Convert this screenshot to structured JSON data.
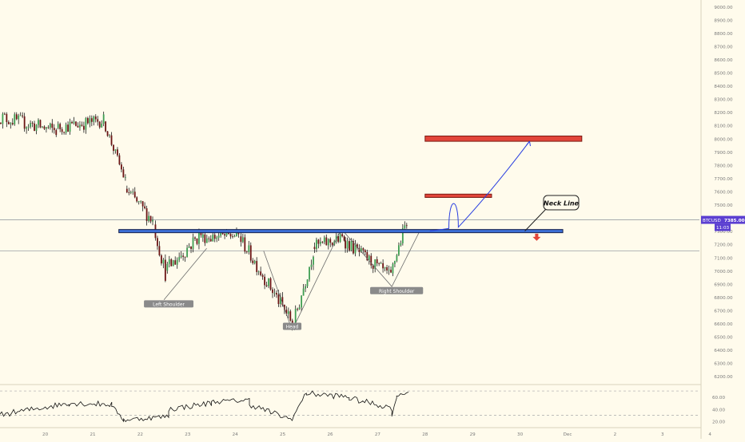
{
  "chart_data": {
    "type": "candlestick",
    "symbol": "BTCUSD",
    "last_price": "7385.00",
    "countdown": "11:03",
    "y_axis": {
      "ylim": [
        6150,
        9050
      ],
      "ticks": [
        "9000.00",
        "8900.00",
        "8800.00",
        "8700.00",
        "8600.00",
        "8500.00",
        "8400.00",
        "8300.00",
        "8200.00",
        "8100.00",
        "8000.00",
        "7900.00",
        "7800.00",
        "7700.00",
        "7600.00",
        "7500.00",
        "7400.00",
        "7300.00",
        "7200.00",
        "7100.00",
        "7000.00",
        "6900.00",
        "6800.00",
        "6700.00",
        "6600.00",
        "6500.00",
        "6400.00",
        "6300.00",
        "6200.00"
      ]
    },
    "x_axis": {
      "ticks": [
        {
          "label": "20",
          "day": 20
        },
        {
          "label": "21",
          "day": 21
        },
        {
          "label": "22",
          "day": 22
        },
        {
          "label": "23",
          "day": 23
        },
        {
          "label": "24",
          "day": 24
        },
        {
          "label": "25",
          "day": 25
        },
        {
          "label": "26",
          "day": 26
        },
        {
          "label": "27",
          "day": 27
        },
        {
          "label": "28",
          "day": 28
        },
        {
          "label": "29",
          "day": 29
        },
        {
          "label": "30",
          "day": 30
        },
        {
          "label": "Dec",
          "day": 31
        },
        {
          "label": "2",
          "day": 32
        },
        {
          "label": "3",
          "day": 33
        },
        {
          "label": "4",
          "day": 34
        }
      ]
    },
    "neck_line": {
      "label": "Neck Line",
      "price": 7300,
      "day_start": 21.55,
      "day_end": 30.9
    },
    "horizontal_lines": [
      {
        "price": 7385
      },
      {
        "price": 7150
      }
    ],
    "zones": [
      {
        "role": "upper-target",
        "day_start": 28.0,
        "day_end": 31.3,
        "price_low": 7980,
        "price_high": 8020
      },
      {
        "role": "lower-target",
        "day_start": 28.0,
        "day_end": 29.4,
        "price_low": 7555,
        "price_high": 7580
      }
    ],
    "pattern_labels": [
      {
        "text": "Left Shoulder",
        "day": 22.6,
        "price": 6740
      },
      {
        "text": "Head",
        "day": 25.2,
        "price": 6570
      },
      {
        "text": "Right Shoulder",
        "day": 27.4,
        "price": 6840
      }
    ],
    "pattern_lines": [
      [
        [
          22.5,
          6780
        ],
        [
          23.4,
          7170
        ]
      ],
      [
        [
          24.6,
          7150
        ],
        [
          25.2,
          6550
        ],
        [
          26.2,
          7290
        ]
      ],
      [
        [
          26.3,
          7290
        ],
        [
          27.3,
          6880
        ],
        [
          27.9,
          7310
        ]
      ]
    ],
    "projection_path": [
      [
        28.1,
        7300
      ],
      [
        28.5,
        7320
      ],
      [
        28.6,
        7570
      ],
      [
        28.7,
        7330
      ],
      [
        29.4,
        7560
      ],
      [
        30.2,
        7980
      ]
    ],
    "down_arrow": {
      "day": 30.35,
      "price": 7250
    },
    "candles_segments": [
      {
        "from_day": 19.0,
        "to_day": 20.25,
        "start": 8170,
        "end": 8060,
        "low": 8000,
        "high": 8200,
        "noise": 55
      },
      {
        "from_day": 20.25,
        "to_day": 21.25,
        "start": 8080,
        "end": 8140,
        "low": 8030,
        "high": 8210,
        "noise": 50
      },
      {
        "from_day": 21.25,
        "to_day": 21.7,
        "start": 8130,
        "end": 7680,
        "low": 7640,
        "high": 8150,
        "noise": 40
      },
      {
        "from_day": 21.7,
        "to_day": 22.3,
        "start": 7620,
        "end": 7380,
        "low": 7340,
        "high": 7700,
        "noise": 55
      },
      {
        "from_day": 22.3,
        "to_day": 22.55,
        "start": 7350,
        "end": 6980,
        "low": 6890,
        "high": 7400,
        "noise": 60
      },
      {
        "from_day": 22.55,
        "to_day": 23.3,
        "start": 7000,
        "end": 7280,
        "low": 6950,
        "high": 7360,
        "noise": 60
      },
      {
        "from_day": 23.3,
        "to_day": 24.1,
        "start": 7250,
        "end": 7270,
        "low": 7150,
        "high": 7330,
        "noise": 45
      },
      {
        "from_day": 24.1,
        "to_day": 25.25,
        "start": 7260,
        "end": 6580,
        "low": 6550,
        "high": 7310,
        "noise": 55
      },
      {
        "from_day": 25.25,
        "to_day": 25.65,
        "start": 6600,
        "end": 7150,
        "low": 6560,
        "high": 7200,
        "noise": 60
      },
      {
        "from_day": 25.65,
        "to_day": 26.3,
        "start": 7180,
        "end": 7250,
        "low": 7120,
        "high": 7340,
        "noise": 50
      },
      {
        "from_day": 26.3,
        "to_day": 27.3,
        "start": 7230,
        "end": 6950,
        "low": 6870,
        "high": 7290,
        "noise": 50
      },
      {
        "from_day": 27.3,
        "to_day": 27.65,
        "start": 6980,
        "end": 7385,
        "low": 6950,
        "high": 7395,
        "noise": 45
      }
    ],
    "rsi": {
      "ticks": [
        "60.00",
        "40.00",
        "20.00"
      ],
      "levels": [
        70,
        30
      ],
      "ylim": [
        12,
        78
      ],
      "segments": [
        {
          "from_day": 19.0,
          "to_day": 20.5,
          "start": 30,
          "end": 50,
          "noise": 5
        },
        {
          "from_day": 20.5,
          "to_day": 21.4,
          "start": 50,
          "end": 48,
          "noise": 5
        },
        {
          "from_day": 21.4,
          "to_day": 21.65,
          "start": 46,
          "end": 22,
          "noise": 3
        },
        {
          "from_day": 21.65,
          "to_day": 22.6,
          "start": 22,
          "end": 28,
          "noise": 4
        },
        {
          "from_day": 22.6,
          "to_day": 23.5,
          "start": 40,
          "end": 50,
          "noise": 5
        },
        {
          "from_day": 23.5,
          "to_day": 24.3,
          "start": 52,
          "end": 55,
          "noise": 4
        },
        {
          "from_day": 24.3,
          "to_day": 25.2,
          "start": 48,
          "end": 22,
          "noise": 5
        },
        {
          "from_day": 25.2,
          "to_day": 25.5,
          "start": 24,
          "end": 68,
          "noise": 3
        },
        {
          "from_day": 25.5,
          "to_day": 26.4,
          "start": 66,
          "end": 60,
          "noise": 5
        },
        {
          "from_day": 26.4,
          "to_day": 27.3,
          "start": 58,
          "end": 42,
          "noise": 5
        },
        {
          "from_day": 27.3,
          "to_day": 27.4,
          "start": 28,
          "end": 60,
          "noise": 2
        },
        {
          "from_day": 27.4,
          "to_day": 27.65,
          "start": 62,
          "end": 68,
          "noise": 2
        }
      ]
    }
  }
}
